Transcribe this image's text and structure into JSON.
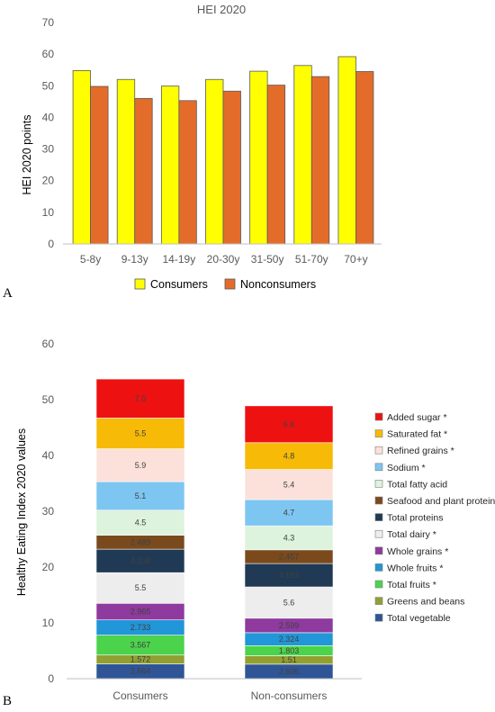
{
  "panels": {
    "a": "A",
    "b": "B"
  },
  "chart_data": [
    {
      "type": "bar",
      "title": "HEI 2020",
      "xlabel": "",
      "ylabel": "HEI 2020 points",
      "ylim": [
        0,
        70
      ],
      "yticks": [
        0,
        10,
        20,
        30,
        40,
        50,
        60,
        70
      ],
      "categories": [
        "5-8y",
        "9-13y",
        "14-19y",
        "20-30y",
        "31-50y",
        "51-70y",
        "70+y"
      ],
      "series": [
        {
          "name": "Consumers",
          "color": "#FFFF00",
          "values": [
            54.8,
            52.0,
            49.9,
            52.0,
            54.6,
            56.4,
            59.2
          ]
        },
        {
          "name": "Nonconsumers",
          "color": "#E46C2A",
          "values": [
            49.8,
            46.0,
            45.3,
            48.3,
            50.2,
            52.9,
            54.5
          ]
        }
      ],
      "legend_position": "bottom",
      "grid": false
    },
    {
      "type": "bar",
      "stacked": true,
      "title": "",
      "xlabel": "",
      "ylabel": "Healthy Eating Index 2020 values",
      "ylim": [
        0,
        60
      ],
      "yticks": [
        0,
        10,
        20,
        30,
        40,
        50,
        60
      ],
      "categories": [
        "Consumers",
        "Non-consumers"
      ],
      "series": [
        {
          "name": "Total vegetable",
          "color": "#2F5597",
          "values": [
            2.664,
            2.606
          ],
          "labels": [
            "2.664",
            "2.606"
          ]
        },
        {
          "name": "Greens and beans",
          "color": "#92A032",
          "values": [
            1.572,
            1.51
          ],
          "labels": [
            "1.572",
            "1.51"
          ]
        },
        {
          "name": "Total fruits  *",
          "color": "#4CD34C",
          "values": [
            3.567,
            1.803
          ],
          "labels": [
            "3.567",
            "1.803"
          ]
        },
        {
          "name": "Whole fruits *",
          "color": "#2196D8",
          "values": [
            2.733,
            2.324
          ],
          "labels": [
            "2.733",
            "2.324"
          ]
        },
        {
          "name": "Whole grains *",
          "color": "#8E3A9E",
          "values": [
            2.965,
            2.599
          ],
          "labels": [
            "2.965",
            "2.599"
          ]
        },
        {
          "name": "Total dairy *",
          "color": "#EDEDED",
          "values": [
            5.5,
            5.6
          ],
          "labels": [
            "5.5",
            "5.6"
          ]
        },
        {
          "name": "Total proteins",
          "color": "#203A55",
          "values": [
            4.208,
            4.193
          ],
          "labels": [
            "4.208",
            "4.193"
          ]
        },
        {
          "name": "Seafood and plant protein",
          "color": "#7A4A1C",
          "values": [
            2.489,
            2.457
          ],
          "labels": [
            "2.489",
            "2.457"
          ]
        },
        {
          "name": "Total fatty acid",
          "color": "#DDF3DD",
          "values": [
            4.5,
            4.3
          ],
          "labels": [
            "4.5",
            "4.3"
          ]
        },
        {
          "name": "Sodium *",
          "color": "#7EC6F2",
          "values": [
            5.1,
            4.7
          ],
          "labels": [
            "5.1",
            "4.7"
          ]
        },
        {
          "name": "Refined grains *",
          "color": "#FBE1DA",
          "values": [
            5.9,
            5.4
          ],
          "labels": [
            "5.9",
            "5.4"
          ]
        },
        {
          "name": "Saturated fat *",
          "color": "#F7BA06",
          "values": [
            5.5,
            4.8
          ],
          "labels": [
            "5.5",
            "4.8"
          ]
        },
        {
          "name": "Added sugar *",
          "color": "#EE1111",
          "values": [
            7.0,
            6.6
          ],
          "labels": [
            "7.0",
            "6.6"
          ]
        }
      ],
      "legend_position": "right",
      "grid": false
    }
  ]
}
